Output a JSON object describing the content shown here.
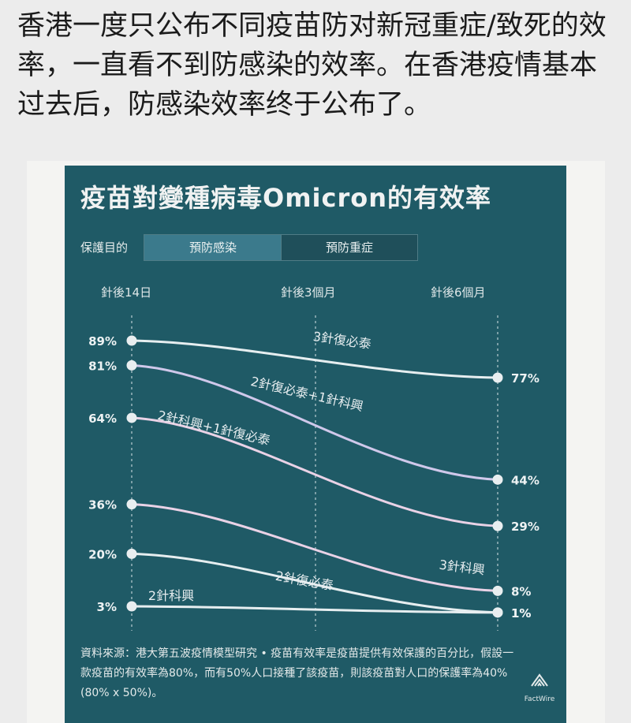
{
  "caption": "香港一度只公布不同疫苗防对新冠重症/致死的效率，一直看不到防感染的效率。在香港疫情基本过去后，防感染效率终于公布了。",
  "card": {
    "goal_label": "保護目的",
    "tabs": [
      {
        "label": "預防感染",
        "active": true
      },
      {
        "label": "預防重症",
        "active": false
      }
    ],
    "source_text": "資料來源：港大第五波疫情模型研究 • 疫苗有效率是疫苗提供有效保護的百分比，假設一款疫苗的有效率為80%，而有50%人口接種了該疫苗，則該疫苗對人口的保護率為40% (80% x 50%)。",
    "logo_text": "FactWire"
  },
  "chart_data": {
    "type": "line",
    "title": "疫苗對變種病毒Omicron的有效率",
    "x": [
      "針後14日",
      "針後3個月",
      "針後6個月"
    ],
    "ylim": [
      0,
      100
    ],
    "series": [
      {
        "name": "3針復必泰",
        "start": 89,
        "end": 77,
        "start_label": "89%",
        "end_label": "77%"
      },
      {
        "name": "2針復必泰+1針科興",
        "start": 81,
        "end": 44,
        "start_label": "81%",
        "end_label": "44%"
      },
      {
        "name": "2針科興+1針復必泰",
        "start": 64,
        "end": 29,
        "start_label": "64%",
        "end_label": "29%"
      },
      {
        "name": "3針科興",
        "start": 36,
        "end": 8,
        "start_label": "36%",
        "end_label": "8%"
      },
      {
        "name": "2針復必泰",
        "start": 20,
        "end": 1,
        "start_label": "20%",
        "end_label": "1%"
      },
      {
        "name": "2針科興",
        "start": 3,
        "end": 1,
        "start_label": "3%",
        "end_label": "1%"
      }
    ],
    "colors": {
      "background": "#1f5a66",
      "line_light": "#e6eef0",
      "line_pink": "#e9d2e6",
      "line_lavender": "#cfc8ea",
      "dot": "#e9eef0"
    }
  }
}
